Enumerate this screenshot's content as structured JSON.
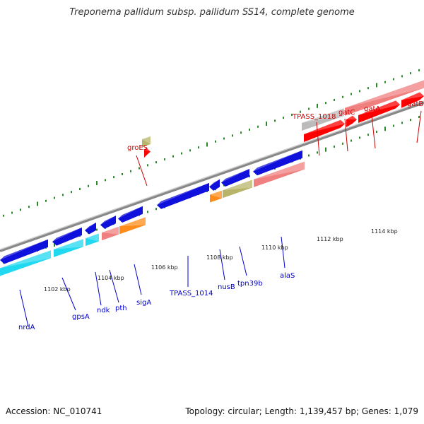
{
  "title": "Treponema pallidum subsp. pallidum SS14, complete genome",
  "footer": {
    "accession": "Accession: NC_010741",
    "topology": "Topology: circular; Length: 1,139,457 bp; Genes: 1,079"
  },
  "colors": {
    "blue": "#1010dd",
    "cyan": "#20d8f0",
    "pink": "#f08080",
    "orange": "#ff8c1a",
    "olive": "#b8b46a",
    "red": "#ff0000",
    "grey": "#bbbbbb",
    "tick": "#2a8a2a",
    "label_blue": "#0000cc",
    "label_red": "#cc0000"
  },
  "ruler_labels": [
    "1102 kbp",
    "1104 kbp",
    "1106 kbp",
    "1108 kbp",
    "1110 kbp",
    "1112 kbp",
    "1114 kbp"
  ],
  "genes": [
    {
      "name": "nrdA",
      "color": "label_blue"
    },
    {
      "name": "gpsA",
      "color": "label_blue"
    },
    {
      "name": "ndk",
      "color": "label_blue"
    },
    {
      "name": "pth",
      "color": "label_blue"
    },
    {
      "name": "sigA",
      "color": "label_blue"
    },
    {
      "name": "TPASS_1014",
      "color": "label_blue"
    },
    {
      "name": "nusB",
      "color": "label_blue"
    },
    {
      "name": "tpn39b",
      "color": "label_blue"
    },
    {
      "name": "alaS",
      "color": "label_blue"
    },
    {
      "name": "groES",
      "color": "label_red"
    },
    {
      "name": "TPASS_1018",
      "color": "label_red"
    },
    {
      "name": "gatC",
      "color": "label_red"
    },
    {
      "name": "gatA",
      "color": "label_red"
    },
    {
      "name": "gatB",
      "color": "label_red"
    }
  ]
}
